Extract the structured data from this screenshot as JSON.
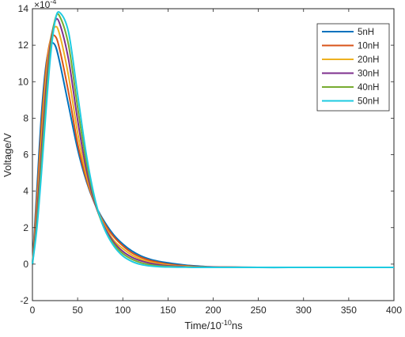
{
  "chart_data": {
    "type": "line",
    "xlabel": "Time/10",
    "xlabel_sup": "-10",
    "xlabel_suffix": "ns",
    "ylabel": "Voltage/V",
    "exponent_base": "×10",
    "exponent_power": "-4",
    "xlim": [
      0,
      400
    ],
    "ylim": [
      -2,
      14
    ],
    "xticks": [
      "0",
      "50",
      "100",
      "150",
      "200",
      "250",
      "300",
      "350",
      "400"
    ],
    "yticks": [
      "-2",
      "0",
      "2",
      "4",
      "6",
      "8",
      "10",
      "12",
      "14"
    ],
    "grid": false,
    "legend_position": "top-right",
    "series": [
      {
        "name": "5nH",
        "color": "#0072BD",
        "x": [
          0,
          5,
          10,
          15,
          20,
          25,
          30,
          40,
          50,
          60,
          70,
          80,
          90,
          100,
          110,
          120,
          130,
          140,
          150,
          160,
          170,
          180,
          190,
          200,
          250,
          300,
          350,
          400
        ],
        "y": [
          0,
          4.1,
          8.2,
          10.9,
          12.0,
          12.0,
          11.1,
          8.7,
          6.3,
          4.5,
          3.2,
          2.3,
          1.6,
          1.1,
          0.72,
          0.45,
          0.27,
          0.15,
          0.07,
          0.0,
          -0.06,
          -0.1,
          -0.13,
          -0.15,
          -0.18,
          -0.18,
          -0.18,
          -0.18
        ]
      },
      {
        "name": "10nH",
        "color": "#D95319",
        "x": [
          0,
          5,
          10,
          15,
          20,
          25,
          30,
          40,
          50,
          60,
          70,
          80,
          90,
          100,
          110,
          120,
          130,
          140,
          150,
          160,
          170,
          180,
          190,
          200,
          250,
          300,
          350,
          400
        ],
        "y": [
          0,
          3.6,
          7.6,
          10.7,
          12.3,
          12.5,
          11.8,
          9.4,
          6.6,
          4.6,
          3.2,
          2.2,
          1.5,
          1.0,
          0.62,
          0.37,
          0.2,
          0.09,
          0.0,
          -0.06,
          -0.1,
          -0.13,
          -0.15,
          -0.16,
          -0.18,
          -0.18,
          -0.18,
          -0.18
        ]
      },
      {
        "name": "20nH",
        "color": "#EDB120",
        "x": [
          0,
          5,
          10,
          15,
          20,
          25,
          30,
          40,
          50,
          60,
          70,
          80,
          90,
          100,
          110,
          120,
          130,
          140,
          150,
          160,
          170,
          180,
          190,
          200,
          250,
          300,
          350,
          400
        ],
        "y": [
          0,
          3.1,
          6.9,
          10.2,
          12.3,
          13.0,
          12.6,
          10.3,
          7.2,
          4.8,
          3.2,
          2.1,
          1.3,
          0.85,
          0.5,
          0.27,
          0.12,
          0.02,
          -0.05,
          -0.1,
          -0.13,
          -0.15,
          -0.16,
          -0.17,
          -0.18,
          -0.18,
          -0.18,
          -0.18
        ]
      },
      {
        "name": "30nH",
        "color": "#7E2F8E",
        "x": [
          0,
          5,
          10,
          15,
          20,
          25,
          30,
          40,
          50,
          60,
          70,
          80,
          90,
          100,
          110,
          120,
          130,
          140,
          150,
          160,
          170,
          180,
          190,
          200,
          250,
          300,
          350,
          400
        ],
        "y": [
          0,
          2.7,
          6.2,
          9.6,
          12.1,
          13.3,
          13.2,
          11.2,
          7.9,
          5.1,
          3.2,
          2.0,
          1.2,
          0.7,
          0.38,
          0.18,
          0.05,
          -0.03,
          -0.09,
          -0.12,
          -0.15,
          -0.16,
          -0.17,
          -0.17,
          -0.18,
          -0.18,
          -0.18,
          -0.18
        ]
      },
      {
        "name": "40nH",
        "color": "#77AC30",
        "x": [
          0,
          5,
          10,
          15,
          20,
          25,
          30,
          40,
          50,
          60,
          70,
          80,
          90,
          100,
          110,
          120,
          130,
          140,
          150,
          160,
          170,
          180,
          190,
          200,
          250,
          300,
          350,
          400
        ],
        "y": [
          0,
          2.3,
          5.6,
          9.0,
          11.8,
          13.4,
          13.6,
          12.0,
          8.6,
          5.5,
          3.3,
          1.9,
          1.1,
          0.58,
          0.27,
          0.08,
          -0.03,
          -0.1,
          -0.13,
          -0.15,
          -0.16,
          -0.17,
          -0.17,
          -0.18,
          -0.18,
          -0.18,
          -0.18,
          -0.18
        ]
      },
      {
        "name": "50nH",
        "color": "#1ECBE1",
        "x": [
          0,
          5,
          10,
          15,
          20,
          25,
          30,
          40,
          50,
          60,
          70,
          80,
          90,
          100,
          110,
          120,
          130,
          140,
          150,
          160,
          170,
          180,
          190,
          200,
          250,
          300,
          350,
          400
        ],
        "y": [
          0,
          2.0,
          5.0,
          8.4,
          11.4,
          13.3,
          13.8,
          12.7,
          9.3,
          5.9,
          3.4,
          1.9,
          1.0,
          0.45,
          0.15,
          -0.02,
          -0.1,
          -0.14,
          -0.16,
          -0.17,
          -0.17,
          -0.18,
          -0.18,
          -0.18,
          -0.18,
          -0.18,
          -0.18,
          -0.18
        ]
      }
    ]
  }
}
